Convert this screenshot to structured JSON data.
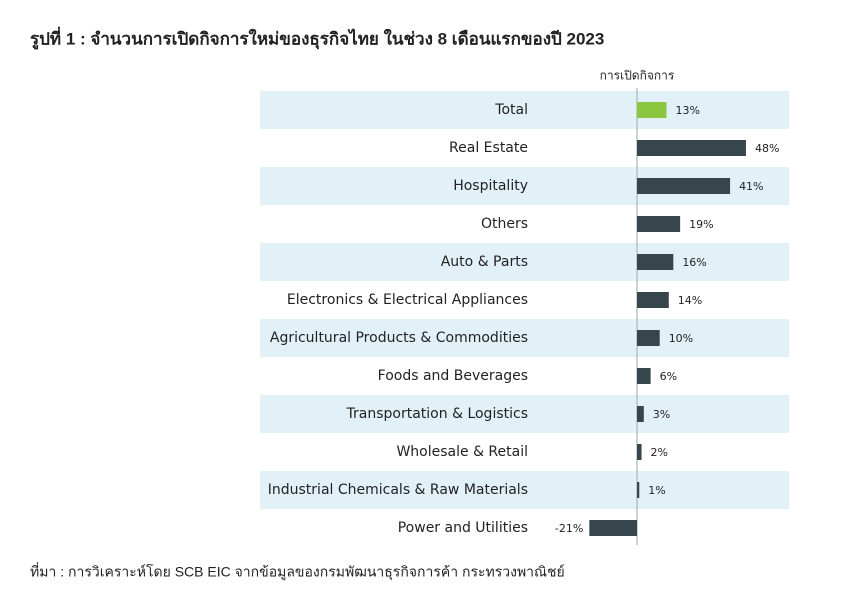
{
  "chart_data": {
    "type": "bar",
    "orientation": "horizontal",
    "title": "รูปที่ 1 : จำนวนการเปิดกิจการใหม่ของธุรกิจไทย ในช่วง 8 เดือนแรกของปี 2023",
    "categories": [
      "Total",
      "Real Estate",
      "Hospitality",
      "Others",
      "Auto & Parts",
      "Electronics & Electrical Appliances",
      "Agricultural Products & Commodities",
      "Foods and Beverages",
      "Transportation & Logistics",
      "Wholesale & Retail",
      "Industrial Chemicals & Raw Materials",
      "Power and Utilities"
    ],
    "series": [
      {
        "name": "การเปิดกิจการ",
        "values": [
          13,
          48,
          41,
          19,
          16,
          14,
          10,
          6,
          3,
          2,
          1,
          -21
        ],
        "value_labels": [
          "13%",
          "48%",
          "41%",
          "19%",
          "16%",
          "14%",
          "10%",
          "6%",
          "3%",
          "2%",
          "1%",
          "-21%"
        ],
        "colors": [
          "#8cc63e",
          "#37454d",
          "#37454d",
          "#37454d",
          "#37454d",
          "#37454d",
          "#37454d",
          "#37454d",
          "#37454d",
          "#37454d",
          "#37454d",
          "#37454d"
        ]
      }
    ],
    "source": "ที่มา : การวิเคราะห์โดย SCB EIC จากข้อมูลของกรมพัฒนาธุรกิจการค้า กระทรวงพาณิชย์"
  }
}
